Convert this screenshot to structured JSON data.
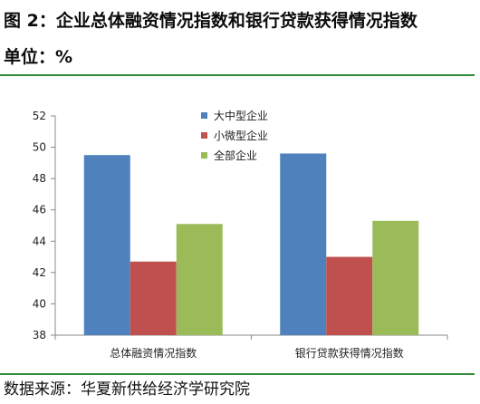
{
  "title": "图 2：企业总体融资情况指数和银行贷款获得情况指数",
  "unit": "单位：%",
  "source": "数据来源：华夏新供给经济学研究院",
  "chart_data": {
    "type": "bar",
    "categories": [
      "总体融资情况指数",
      "银行贷款获得情况指数"
    ],
    "series": [
      {
        "name": "大中型企业",
        "values": [
          49.5,
          49.6
        ],
        "color": "#4f81bd"
      },
      {
        "name": "小微型企业",
        "values": [
          42.7,
          43.0
        ],
        "color": "#c0504d"
      },
      {
        "name": "全部企业",
        "values": [
          45.1,
          45.3
        ],
        "color": "#9bbb59"
      }
    ],
    "ylim": [
      38,
      52
    ],
    "yticks": [
      "38",
      "40",
      "42",
      "44",
      "46",
      "48",
      "50",
      "52"
    ],
    "grid": false,
    "legend_position": "top-center"
  }
}
